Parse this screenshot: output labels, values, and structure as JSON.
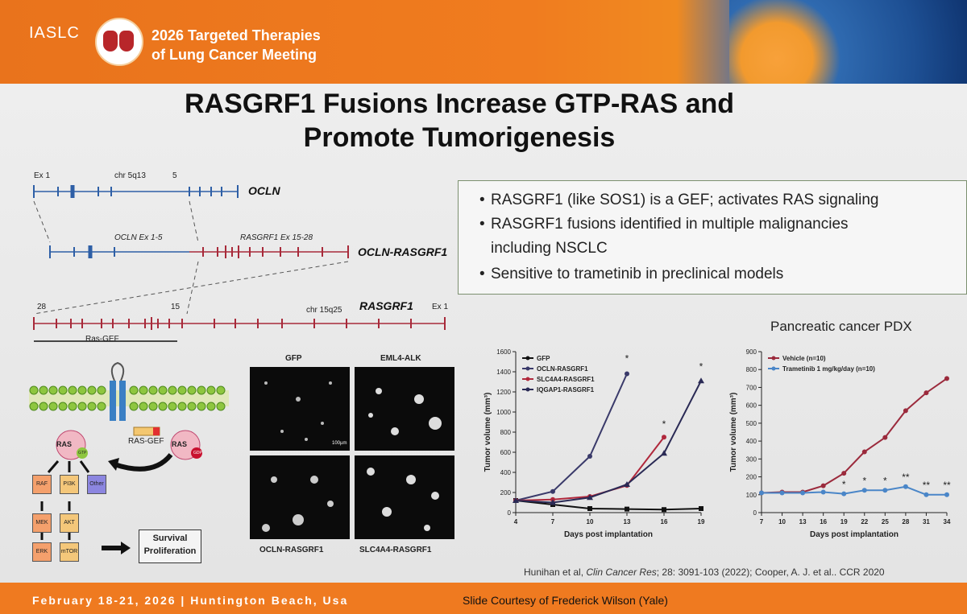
{
  "header": {
    "society": "IASLC",
    "meeting_line1": "2026 Targeted Therapies",
    "meeting_line2": "of Lung Cancer Meeting"
  },
  "slide": {
    "title_line1": "RASGRF1 Fusions Increase GTP-RAS and",
    "title_line2": "Promote Tumorigenesis",
    "bullets": [
      "RASGRF1 (like SOS1) is a GEF; activates RAS signaling",
      "RASGRF1 fusions identified in multiple malignancies",
      "including NSCLC",
      "Sensitive to trametinib in preclinical models"
    ],
    "gene_diagram": {
      "ocln": {
        "name": "OCLN",
        "ex_start": "Ex 1",
        "chr": "chr 5q13",
        "ex_end": "5"
      },
      "fusion": {
        "name": "OCLN-RASGRF1",
        "part1": "OCLN Ex 1-5",
        "part2": "RASGRF1 Ex 15-28"
      },
      "rasgrf1": {
        "name": "RASGRF1",
        "ex_left": "28",
        "ex_mid": "15",
        "chr": "chr 15q25",
        "ex_right": "Ex 1",
        "domain": "Ras-GEF"
      }
    },
    "pathway": {
      "ras": "RAS",
      "gtp": "GTP",
      "ras_gef": "RAS-GEF",
      "ras2": "RAS",
      "gdp": "GDP",
      "raf": "RAF",
      "pi3k": "PI3K",
      "other": "Other",
      "mek": "MEK",
      "akt": "AKT",
      "erk": "ERK",
      "mtor": "mTOR",
      "outcome_line1": "Survival",
      "outcome_line2": "Proliferation"
    },
    "micrographs": {
      "top_left": "GFP",
      "top_right": "EML4-ALK",
      "bottom_left": "OCLN-RASGRF1",
      "bottom_right": "SLC4A4-RASGRF1",
      "scale": "100µm"
    },
    "pdx_title": "Pancreatic cancer PDX",
    "citation_authors": "Hunihan et al, ",
    "citation_journal": "Clin Cancer Res",
    "citation_rest": "; 28: 3091-103 (2022); Cooper, A. J. et al.. CCR 2020"
  },
  "footer": {
    "date": "February 18-21, 2026  |  Huntington Beach, Usa",
    "credit": "Slide Courtesy of Frederick Wilson (Yale)"
  },
  "chart_data": [
    {
      "type": "line",
      "xlabel": "Days post implantation",
      "ylabel": "Tumor volume (mm³)",
      "x": [
        4,
        7,
        10,
        13,
        16,
        19
      ],
      "xticks": [
        "4",
        "7",
        "10",
        "13",
        "16",
        "19"
      ],
      "yticks": [
        "0",
        "200",
        "400",
        "600",
        "800",
        "1000",
        "1200",
        "1400",
        "1600"
      ],
      "ylim": [
        0,
        1600
      ],
      "legend_position": "top-left",
      "series": [
        {
          "name": "GFP",
          "color": "#111111",
          "marker": "square",
          "values": [
            120,
            80,
            40,
            35,
            30,
            40
          ]
        },
        {
          "name": "OCLN-RASGRF1",
          "color": "#3a3a6a",
          "marker": "circle",
          "values": [
            120,
            210,
            560,
            1380,
            null,
            null
          ]
        },
        {
          "name": "SLC4A4-RASGRF1",
          "color": "#b0283c",
          "marker": "circle",
          "values": [
            120,
            130,
            160,
            270,
            750,
            null
          ]
        },
        {
          "name": "IQGAP1-RASGRF1",
          "color": "#2a2a55",
          "marker": "triangle",
          "values": [
            120,
            100,
            150,
            280,
            590,
            1310
          ]
        }
      ],
      "annotations": [
        {
          "text": "*",
          "x": 13,
          "y": 1500
        },
        {
          "text": "*",
          "x": 16,
          "y": 850
        },
        {
          "text": "*",
          "x": 19,
          "y": 1420
        }
      ]
    },
    {
      "type": "line",
      "xlabel": "Days post implantation",
      "ylabel": "Tumor volume (mm³)",
      "x": [
        7,
        10,
        13,
        16,
        19,
        22,
        25,
        28,
        31,
        34
      ],
      "xticks": [
        "7",
        "10",
        "13",
        "16",
        "19",
        "22",
        "25",
        "28",
        "31",
        "34"
      ],
      "yticks": [
        "0",
        "100",
        "200",
        "300",
        "400",
        "500",
        "600",
        "700",
        "800",
        "900"
      ],
      "ylim": [
        0,
        900
      ],
      "legend_position": "top-left",
      "series": [
        {
          "name": "Vehicle (n=10)",
          "color": "#9b2a3c",
          "marker": "circle",
          "values": [
            110,
            115,
            115,
            150,
            220,
            340,
            420,
            570,
            670,
            750
          ]
        },
        {
          "name": "Trametinib 1 mg/kg/day (n=10)",
          "color": "#4a86c8",
          "marker": "circle",
          "values": [
            110,
            110,
            110,
            115,
            105,
            125,
            125,
            145,
            100,
            100
          ]
        }
      ],
      "annotations": [
        {
          "text": "*",
          "x": 19,
          "y": 140
        },
        {
          "text": "*",
          "x": 22,
          "y": 160
        },
        {
          "text": "*",
          "x": 25,
          "y": 160
        },
        {
          "text": "**",
          "x": 28,
          "y": 180
        },
        {
          "text": "**",
          "x": 31,
          "y": 135
        },
        {
          "text": "**",
          "x": 34,
          "y": 135
        }
      ]
    }
  ]
}
